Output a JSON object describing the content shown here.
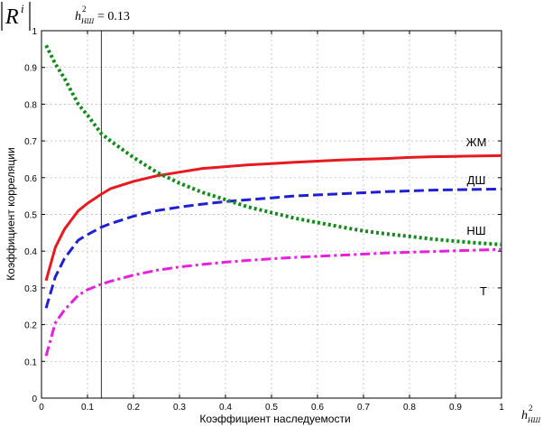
{
  "chart_data": {
    "type": "line",
    "corner_label": {
      "base": "R",
      "sup": "i"
    },
    "annotation": {
      "base": "h",
      "sup": "2",
      "sub": "НШ",
      "rest": "= 0.13",
      "x": 0.13
    },
    "xlabel": "Коэффициент наследуемости",
    "xlabel_symbol": {
      "base": "h",
      "sup": "2",
      "sub": "НШ"
    },
    "ylabel": "Коэффициент корреляции",
    "xlim": [
      0,
      1
    ],
    "ylim": [
      0,
      1
    ],
    "x_ticks": [
      "0",
      "0.1",
      "0.2",
      "0.3",
      "0.4",
      "0.5",
      "0.6",
      "0.7",
      "0.8",
      "0.9",
      "1"
    ],
    "y_ticks": [
      "0",
      "0.1",
      "0.2",
      "0.3",
      "0.4",
      "0.5",
      "0.6",
      "0.7",
      "0.8",
      "0.9",
      "1"
    ],
    "grid": true,
    "x": [
      0.01,
      0.03,
      0.05,
      0.08,
      0.1,
      0.13,
      0.15,
      0.2,
      0.25,
      0.3,
      0.35,
      0.4,
      0.45,
      0.5,
      0.55,
      0.6,
      0.65,
      0.7,
      0.75,
      0.8,
      0.85,
      0.9,
      0.95,
      1.0
    ],
    "series": [
      {
        "name": "ЖМ",
        "color": "#e8191f",
        "dash": "solid",
        "values": [
          0.32,
          0.41,
          0.46,
          0.51,
          0.53,
          0.555,
          0.57,
          0.59,
          0.605,
          0.615,
          0.625,
          0.63,
          0.635,
          0.638,
          0.642,
          0.645,
          0.648,
          0.65,
          0.652,
          0.655,
          0.657,
          0.658,
          0.659,
          0.66
        ]
      },
      {
        "name": "ДШ",
        "color": "#1f1fd6",
        "dash": "dash",
        "values": [
          0.245,
          0.33,
          0.38,
          0.43,
          0.445,
          0.465,
          0.475,
          0.495,
          0.51,
          0.52,
          0.528,
          0.535,
          0.54,
          0.545,
          0.55,
          0.553,
          0.556,
          0.559,
          0.562,
          0.564,
          0.566,
          0.567,
          0.568,
          0.569
        ]
      },
      {
        "name": "НШ",
        "color": "#118c1a",
        "dash": "dot",
        "values": [
          0.96,
          0.91,
          0.87,
          0.8,
          0.77,
          0.72,
          0.7,
          0.655,
          0.615,
          0.585,
          0.56,
          0.54,
          0.52,
          0.505,
          0.49,
          0.478,
          0.466,
          0.455,
          0.447,
          0.44,
          0.433,
          0.427,
          0.422,
          0.418
        ]
      },
      {
        "name": "Т",
        "color": "#e81ee1",
        "dash": "dashdot",
        "values": [
          0.115,
          0.205,
          0.24,
          0.28,
          0.295,
          0.31,
          0.318,
          0.335,
          0.348,
          0.357,
          0.364,
          0.37,
          0.375,
          0.379,
          0.383,
          0.386,
          0.389,
          0.392,
          0.395,
          0.397,
          0.399,
          0.401,
          0.403,
          0.405
        ]
      }
    ]
  }
}
